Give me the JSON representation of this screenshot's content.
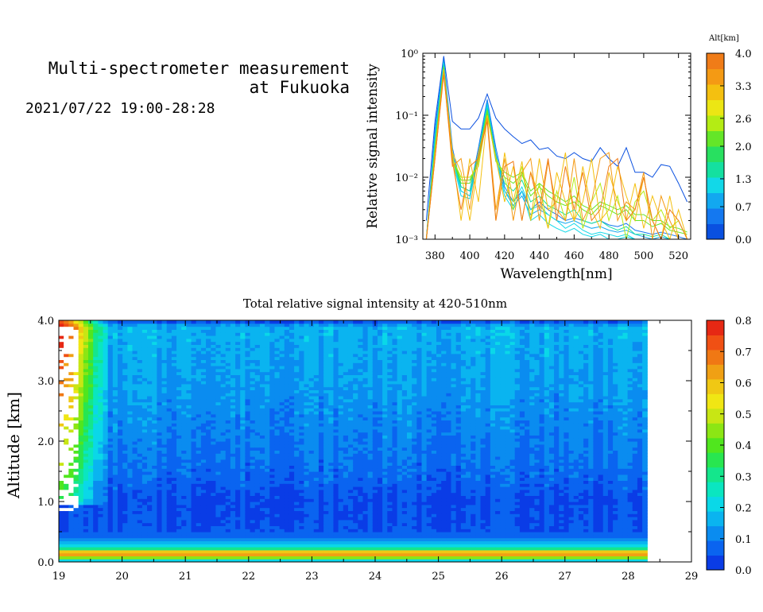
{
  "header": {
    "title_line1": "Multi-spectrometer measurement",
    "title_line2": "at Fukuoka",
    "datetime": "2021/07/22 19:00-28:28"
  },
  "chart_data": [
    {
      "type": "line",
      "xlabel": "Wavelength[nm]",
      "ylabel": "Relative signal intensity",
      "yscale": "log",
      "xlim": [
        373,
        527
      ],
      "ylim": [
        0.001,
        1
      ],
      "x_ticks": [
        "380",
        "400",
        "420",
        "440",
        "460",
        "480",
        "500",
        "520"
      ],
      "y_ticks": [
        "10⁻³",
        "10⁻²",
        "10⁻¹",
        "10⁰"
      ],
      "colorbar": {
        "label": "Alt[km]",
        "ticks": [
          "0.0",
          "0.7",
          "1.3",
          "2.0",
          "2.6",
          "3.3",
          "4.0"
        ],
        "colors": [
          "#0a50e0",
          "#1478f0",
          "#12a8f0",
          "#12d8e8",
          "#14e0a0",
          "#28e060",
          "#64e628",
          "#b4ec14",
          "#ece614",
          "#f4c010",
          "#f49a14",
          "#f07c18"
        ]
      },
      "x": [
        375,
        380,
        385,
        390,
        395,
        400,
        405,
        410,
        415,
        420,
        425,
        430,
        435,
        440,
        445,
        450,
        455,
        460,
        465,
        470,
        475,
        480,
        485,
        490,
        495,
        500,
        505,
        510,
        515,
        520,
        525
      ],
      "series": [
        {
          "alt": 0.0,
          "values": [
            0.002,
            0.08,
            0.9,
            0.08,
            0.06,
            0.06,
            0.09,
            0.22,
            0.09,
            0.06,
            0.045,
            0.035,
            0.04,
            0.028,
            0.03,
            0.022,
            0.02,
            0.025,
            0.02,
            0.018,
            0.03,
            0.02,
            0.015,
            0.03,
            0.012,
            0.012,
            0.01,
            0.016,
            0.015,
            0.008,
            0.004
          ]
        },
        {
          "alt": 0.35,
          "values": [
            0.001,
            0.06,
            0.8,
            0.03,
            0.007,
            0.006,
            0.03,
            0.18,
            0.03,
            0.007,
            0.004,
            0.006,
            0.003,
            0.004,
            0.003,
            0.0025,
            0.002,
            0.0022,
            0.002,
            0.0018,
            0.002,
            0.0017,
            0.0016,
            0.0018,
            0.0014,
            0.0013,
            0.0012,
            0.0013,
            0.0012,
            0.0011,
            0.001
          ]
        },
        {
          "alt": 0.7,
          "values": [
            0.001,
            0.05,
            0.75,
            0.025,
            0.006,
            0.005,
            0.025,
            0.16,
            0.025,
            0.006,
            0.0035,
            0.005,
            0.0025,
            0.003,
            0.0025,
            0.002,
            0.0018,
            0.002,
            0.0017,
            0.0015,
            0.0016,
            0.0014,
            0.0013,
            0.0014,
            0.0012,
            0.0011,
            0.001,
            0.0011,
            0.001,
            0.001,
            0.001
          ]
        },
        {
          "alt": 1.0,
          "values": [
            0.001,
            0.04,
            0.7,
            0.02,
            0.005,
            0.0045,
            0.022,
            0.15,
            0.02,
            0.005,
            0.003,
            0.006,
            0.002,
            0.0025,
            0.0018,
            0.0015,
            0.0013,
            0.0015,
            0.0012,
            0.0011,
            0.0012,
            0.001,
            0.001,
            0.0011,
            0.001,
            0.001,
            0.001,
            0.001,
            0.001,
            0.001,
            0.001
          ]
        },
        {
          "alt": 1.3,
          "values": [
            0.001,
            0.04,
            0.7,
            0.02,
            0.006,
            0.005,
            0.02,
            0.14,
            0.02,
            0.006,
            0.004,
            0.007,
            0.003,
            0.0035,
            0.0025,
            0.002,
            0.0015,
            0.0018,
            0.0014,
            0.0012,
            0.0013,
            0.0012,
            0.0011,
            0.0012,
            0.001,
            0.001,
            0.001,
            0.001,
            0.001,
            0.001,
            0.001
          ]
        },
        {
          "alt": 1.6,
          "values": [
            0.001,
            0.035,
            0.65,
            0.022,
            0.007,
            0.006,
            0.025,
            0.13,
            0.022,
            0.008,
            0.006,
            0.009,
            0.004,
            0.005,
            0.0035,
            0.003,
            0.0025,
            0.003,
            0.002,
            0.0018,
            0.002,
            0.0016,
            0.0014,
            0.0016,
            0.0012,
            0.0012,
            0.0011,
            0.0012,
            0.001,
            0.001,
            0.001
          ]
        },
        {
          "alt": 2.0,
          "values": [
            0.001,
            0.03,
            0.6,
            0.02,
            0.008,
            0.008,
            0.02,
            0.12,
            0.02,
            0.01,
            0.008,
            0.011,
            0.005,
            0.007,
            0.005,
            0.004,
            0.0035,
            0.004,
            0.003,
            0.0025,
            0.0035,
            0.003,
            0.0025,
            0.003,
            0.002,
            0.002,
            0.0016,
            0.0018,
            0.0014,
            0.0013,
            0.0012
          ]
        },
        {
          "alt": 2.3,
          "values": [
            0.001,
            0.03,
            0.6,
            0.02,
            0.009,
            0.009,
            0.018,
            0.11,
            0.018,
            0.012,
            0.01,
            0.012,
            0.006,
            0.008,
            0.006,
            0.005,
            0.004,
            0.005,
            0.0035,
            0.003,
            0.004,
            0.0035,
            0.003,
            0.0035,
            0.0025,
            0.0025,
            0.002,
            0.002,
            0.0016,
            0.0015,
            0.0013
          ]
        },
        {
          "alt": 2.6,
          "values": [
            0.001,
            0.025,
            0.55,
            0.02,
            0.01,
            0.01,
            0.015,
            0.1,
            0.02,
            0.01,
            0.003,
            0.015,
            0.002,
            0.008,
            0.0015,
            0.006,
            0.002,
            0.01,
            0.0015,
            0.004,
            0.008,
            0.002,
            0.005,
            0.001,
            0.004,
            0.006,
            0.002,
            0.003,
            0.0015,
            0.002,
            0.001
          ]
        },
        {
          "alt": 3.0,
          "values": [
            0.001,
            0.025,
            0.55,
            0.025,
            0.012,
            0.002,
            0.018,
            0.1,
            0.02,
            0.004,
            0.015,
            0.002,
            0.012,
            0.005,
            0.0015,
            0.012,
            0.004,
            0.002,
            0.015,
            0.003,
            0.0015,
            0.012,
            0.004,
            0.002,
            0.008,
            0.0015,
            0.005,
            0.002,
            0.001,
            0.003,
            0.001
          ]
        },
        {
          "alt": 3.3,
          "values": [
            0.001,
            0.02,
            0.5,
            0.025,
            0.002,
            0.02,
            0.004,
            0.1,
            0.002,
            0.025,
            0.004,
            0.018,
            0.002,
            0.02,
            0.003,
            0.004,
            0.025,
            0.002,
            0.004,
            0.02,
            0.002,
            0.003,
            0.015,
            0.005,
            0.002,
            0.01,
            0.002,
            0.001,
            0.005,
            0.001,
            0.001
          ]
        },
        {
          "alt": 3.6,
          "values": [
            0.001,
            0.02,
            0.5,
            0.015,
            0.02,
            0.003,
            0.025,
            0.09,
            0.003,
            0.02,
            0.002,
            0.012,
            0.02,
            0.002,
            0.018,
            0.003,
            0.002,
            0.02,
            0.002,
            0.004,
            0.02,
            0.025,
            0.002,
            0.004,
            0.003,
            0.012,
            0.001,
            0.005,
            0.002,
            0.001,
            0.001
          ]
        },
        {
          "alt": 4.0,
          "values": [
            0.001,
            0.02,
            0.45,
            0.018,
            0.003,
            0.015,
            0.02,
            0.08,
            0.002,
            0.015,
            0.018,
            0.002,
            0.012,
            0.003,
            0.02,
            0.002,
            0.015,
            0.003,
            0.012,
            0.002,
            0.003,
            0.015,
            0.02,
            0.002,
            0.003,
            0.01,
            0.002,
            0.001,
            0.003,
            0.002,
            0.001
          ]
        }
      ]
    },
    {
      "type": "heatmap",
      "title": "Total relative signal intensity at 420-510nm",
      "xlabel": "",
      "ylabel": "Altitude [km]",
      "xlim": [
        19,
        29
      ],
      "ylim": [
        0,
        4
      ],
      "x_ticks": [
        "19",
        "20",
        "21",
        "22",
        "23",
        "24",
        "25",
        "26",
        "27",
        "28",
        "29"
      ],
      "y_ticks": [
        "0.0",
        "1.0",
        "2.0",
        "3.0",
        "4.0"
      ],
      "data_x_end": 28.3,
      "altitude_levels": [
        0.0,
        0.15,
        0.2,
        0.25,
        0.3,
        0.35,
        0.5,
        1.0,
        1.5,
        2.0,
        2.5,
        3.0,
        3.5,
        3.9,
        4.0
      ],
      "profile_values": [
        0.1,
        0.75,
        0.45,
        0.2,
        0.25,
        0.12,
        0.05,
        0.04,
        0.08,
        0.1,
        0.12,
        0.14,
        0.15,
        0.17,
        0.02
      ],
      "colorbar": {
        "ticks": [
          "0.0",
          "0.1",
          "0.2",
          "0.3",
          "0.4",
          "0.5",
          "0.6",
          "0.7",
          "0.8"
        ],
        "range": [
          0,
          0.8
        ],
        "colors": [
          "#0a3ce6",
          "#0a64f0",
          "#0a8cf0",
          "#0ab4f0",
          "#0ad8e8",
          "#0ae6c0",
          "#14e68c",
          "#28e650",
          "#50e61e",
          "#8ce614",
          "#c8e614",
          "#f0e614",
          "#f0c814",
          "#f0a014",
          "#f07814",
          "#f05014",
          "#e62814"
        ]
      }
    }
  ]
}
